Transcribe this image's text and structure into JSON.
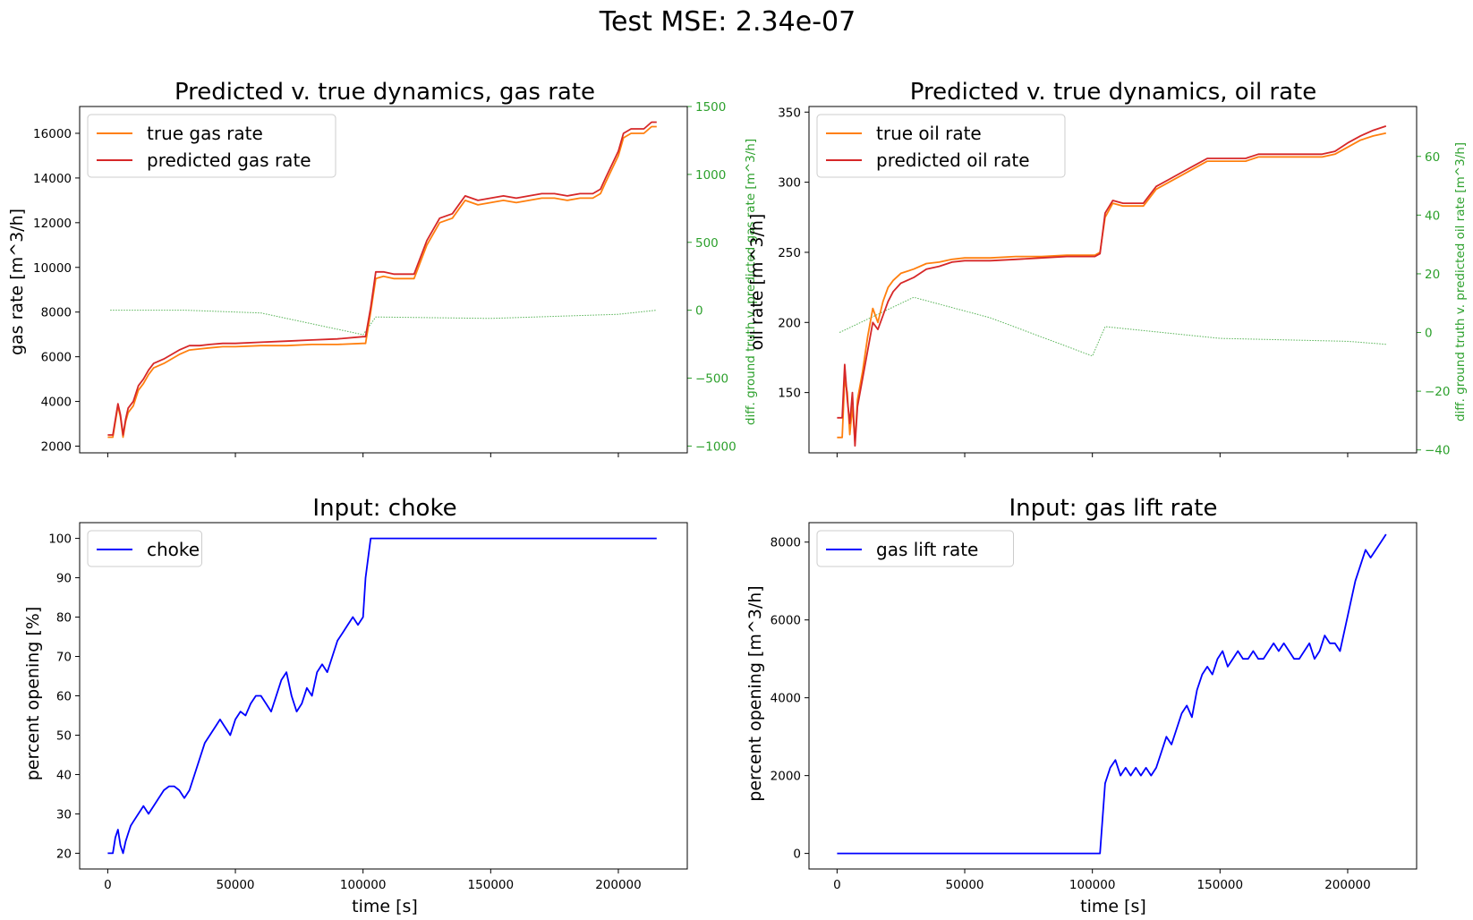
{
  "suptitle": "Test MSE: 2.34e-07",
  "chart_data": [
    {
      "type": "line",
      "title": "Predicted v. true dynamics, gas rate",
      "xlabel": "",
      "ylabel": "gas rate [m^3/h]",
      "ylabel_right": "diff. ground truth v. predicted gas rate [m^3/h]",
      "xlim": [
        -11000,
        227000
      ],
      "ylim": [
        1700,
        17200
      ],
      "ylim_right": [
        -1050,
        1500
      ],
      "xticks": [
        0,
        50000,
        100000,
        150000,
        200000
      ],
      "xtick_labels": [],
      "yticks": [
        2000,
        4000,
        6000,
        8000,
        10000,
        12000,
        14000,
        16000
      ],
      "ytick_labels": [
        "2000",
        "4000",
        "6000",
        "8000",
        "10000",
        "12000",
        "14000",
        "16000"
      ],
      "yticks_right": [
        -1000,
        -500,
        0,
        500,
        1000,
        1500
      ],
      "ytick_labels_right": [
        "−1000",
        "−500",
        "0",
        "500",
        "1000",
        "1500"
      ],
      "legend": "top-left",
      "series": [
        {
          "name": "true gas rate",
          "color": "#ff7f0e",
          "x": [
            0,
            2000,
            4000,
            5000,
            6000,
            7000,
            8000,
            10000,
            12000,
            14000,
            16000,
            18000,
            20000,
            22000,
            25000,
            28000,
            32000,
            36000,
            40000,
            45000,
            50000,
            60000,
            70000,
            80000,
            90000,
            100000,
            101000,
            103000,
            105000,
            108000,
            112000,
            115000,
            120000,
            125000,
            130000,
            135000,
            140000,
            145000,
            150000,
            155000,
            160000,
            165000,
            170000,
            175000,
            180000,
            185000,
            190000,
            193000,
            195000,
            200000,
            202000,
            205000,
            210000,
            213000,
            215000
          ],
          "y": [
            2400,
            2400,
            3800,
            3300,
            2400,
            3100,
            3500,
            3800,
            4500,
            4800,
            5200,
            5500,
            5600,
            5700,
            5900,
            6100,
            6300,
            6350,
            6400,
            6450,
            6450,
            6500,
            6500,
            6550,
            6550,
            6600,
            6600,
            8000,
            9500,
            9600,
            9500,
            9500,
            9500,
            11000,
            12000,
            12200,
            13000,
            12800,
            12900,
            13000,
            12900,
            13000,
            13100,
            13100,
            13000,
            13100,
            13100,
            13300,
            13800,
            15000,
            15800,
            16000,
            16000,
            16300,
            16300
          ]
        },
        {
          "name": "predicted gas rate",
          "color": "#d62728",
          "x": [
            0,
            2000,
            4000,
            5000,
            6000,
            7000,
            8000,
            10000,
            12000,
            14000,
            16000,
            18000,
            20000,
            22000,
            25000,
            28000,
            32000,
            36000,
            40000,
            45000,
            50000,
            60000,
            70000,
            80000,
            90000,
            100000,
            101000,
            103000,
            105000,
            108000,
            112000,
            115000,
            120000,
            125000,
            130000,
            135000,
            140000,
            145000,
            150000,
            155000,
            160000,
            165000,
            170000,
            175000,
            180000,
            185000,
            190000,
            193000,
            195000,
            200000,
            202000,
            205000,
            210000,
            213000,
            215000
          ],
          "y": [
            2500,
            2500,
            3900,
            3400,
            2500,
            3200,
            3700,
            4000,
            4700,
            5000,
            5400,
            5700,
            5800,
            5900,
            6100,
            6300,
            6500,
            6500,
            6550,
            6600,
            6600,
            6650,
            6700,
            6750,
            6800,
            6900,
            6900,
            8200,
            9800,
            9800,
            9700,
            9700,
            9700,
            11200,
            12200,
            12400,
            13200,
            13000,
            13100,
            13200,
            13100,
            13200,
            13300,
            13300,
            13200,
            13300,
            13300,
            13500,
            14000,
            15200,
            16000,
            16200,
            16200,
            16500,
            16500
          ]
        }
      ],
      "diff_series": {
        "name": "difference",
        "color": "#2ca02c",
        "x": [
          1000,
          30000,
          60000,
          100000,
          105000,
          150000,
          200000,
          215000
        ],
        "y": [
          0,
          0,
          -20,
          -180,
          -50,
          -60,
          -30,
          0
        ]
      }
    },
    {
      "type": "line",
      "title": "Predicted v. true dynamics, oil rate",
      "xlabel": "",
      "ylabel": "oil rate [m^3/h]",
      "ylabel_right": "diff. ground truth v. predicted oil rate [m^3/h]",
      "xlim": [
        -11000,
        227000
      ],
      "ylim": [
        107,
        354
      ],
      "ylim_right": [
        -41,
        77
      ],
      "xticks": [
        0,
        50000,
        100000,
        150000,
        200000
      ],
      "xtick_labels": [],
      "yticks": [
        150,
        200,
        250,
        300,
        350
      ],
      "ytick_labels": [
        "150",
        "200",
        "250",
        "300",
        "350"
      ],
      "yticks_right": [
        -40,
        -20,
        0,
        20,
        40,
        60
      ],
      "ytick_labels_right": [
        "−40",
        "−20",
        "0",
        "20",
        "40",
        "60"
      ],
      "legend": "top-left",
      "series": [
        {
          "name": "true oil rate",
          "color": "#ff7f0e",
          "x": [
            0,
            2000,
            3000,
            4000,
            5000,
            6000,
            7000,
            8000,
            10000,
            12000,
            14000,
            16000,
            18000,
            20000,
            22000,
            25000,
            30000,
            35000,
            40000,
            45000,
            50000,
            60000,
            70000,
            80000,
            90000,
            100000,
            101000,
            103000,
            105000,
            108000,
            112000,
            115000,
            120000,
            125000,
            130000,
            135000,
            140000,
            145000,
            150000,
            155000,
            160000,
            165000,
            170000,
            175000,
            180000,
            185000,
            190000,
            195000,
            200000,
            205000,
            210000,
            215000
          ],
          "y": [
            118,
            118,
            160,
            150,
            120,
            140,
            115,
            145,
            165,
            190,
            210,
            200,
            215,
            225,
            230,
            235,
            238,
            242,
            243,
            245,
            246,
            246,
            247,
            247,
            248,
            248,
            248,
            250,
            275,
            285,
            283,
            283,
            283,
            295,
            300,
            305,
            310,
            315,
            315,
            315,
            315,
            318,
            318,
            318,
            318,
            318,
            318,
            320,
            325,
            330,
            333,
            335
          ]
        },
        {
          "name": "predicted oil rate",
          "color": "#d62728",
          "x": [
            0,
            2000,
            3000,
            4000,
            5000,
            6000,
            7000,
            8000,
            10000,
            12000,
            14000,
            16000,
            18000,
            20000,
            22000,
            25000,
            30000,
            35000,
            40000,
            45000,
            50000,
            60000,
            70000,
            80000,
            90000,
            100000,
            101000,
            103000,
            105000,
            108000,
            112000,
            115000,
            120000,
            125000,
            130000,
            135000,
            140000,
            145000,
            150000,
            155000,
            160000,
            165000,
            170000,
            175000,
            180000,
            185000,
            190000,
            195000,
            200000,
            205000,
            210000,
            215000
          ],
          "y": [
            132,
            132,
            170,
            145,
            128,
            150,
            112,
            140,
            160,
            180,
            200,
            195,
            205,
            215,
            222,
            228,
            232,
            238,
            240,
            243,
            244,
            244,
            245,
            246,
            247,
            247,
            247,
            249,
            278,
            287,
            285,
            285,
            285,
            297,
            302,
            307,
            312,
            317,
            317,
            317,
            317,
            320,
            320,
            320,
            320,
            320,
            320,
            322,
            328,
            333,
            337,
            340
          ]
        }
      ],
      "diff_series": {
        "name": "difference",
        "color": "#2ca02c",
        "x": [
          1000,
          30000,
          60000,
          100000,
          105000,
          150000,
          200000,
          215000
        ],
        "y": [
          0,
          12,
          5,
          -8,
          2,
          -2,
          -3,
          -4
        ]
      }
    },
    {
      "type": "line",
      "title": "Input: choke",
      "xlabel": "time [s]",
      "ylabel": "percent opening [%]",
      "xlim": [
        -11000,
        227000
      ],
      "ylim": [
        16,
        104
      ],
      "xticks": [
        0,
        50000,
        100000,
        150000,
        200000
      ],
      "xtick_labels": [
        "0",
        "50000",
        "100000",
        "150000",
        "200000"
      ],
      "yticks": [
        20,
        30,
        40,
        50,
        60,
        70,
        80,
        90,
        100
      ],
      "ytick_labels": [
        "20",
        "30",
        "40",
        "50",
        "60",
        "70",
        "80",
        "90",
        "100"
      ],
      "legend": "top-left",
      "series": [
        {
          "name": "choke",
          "color": "#0000ff",
          "x": [
            0,
            2000,
            3000,
            4000,
            5000,
            6000,
            7000,
            8000,
            9000,
            10000,
            12000,
            14000,
            16000,
            18000,
            20000,
            22000,
            24000,
            26000,
            28000,
            30000,
            32000,
            34000,
            36000,
            38000,
            40000,
            42000,
            44000,
            46000,
            48000,
            50000,
            52000,
            54000,
            56000,
            58000,
            60000,
            62000,
            64000,
            66000,
            68000,
            70000,
            72000,
            74000,
            76000,
            78000,
            80000,
            82000,
            84000,
            86000,
            88000,
            90000,
            92000,
            94000,
            96000,
            98000,
            100000,
            101000,
            103000,
            105000,
            110000,
            150000,
            200000,
            215000
          ],
          "y": [
            20,
            20,
            24,
            26,
            22,
            20,
            23,
            25,
            27,
            28,
            30,
            32,
            30,
            32,
            34,
            36,
            37,
            37,
            36,
            34,
            36,
            40,
            44,
            48,
            50,
            52,
            54,
            52,
            50,
            54,
            56,
            55,
            58,
            60,
            60,
            58,
            56,
            60,
            64,
            66,
            60,
            56,
            58,
            62,
            60,
            66,
            68,
            66,
            70,
            74,
            76,
            78,
            80,
            78,
            80,
            90,
            100,
            100,
            100,
            100,
            100,
            100
          ]
        }
      ]
    },
    {
      "type": "line",
      "title": "Input: gas lift rate",
      "xlabel": "time [s]",
      "ylabel": "percent opening [m^3/h]",
      "xlim": [
        -11000,
        227000
      ],
      "ylim": [
        -400,
        8500
      ],
      "xticks": [
        0,
        50000,
        100000,
        150000,
        200000
      ],
      "xtick_labels": [
        "0",
        "50000",
        "100000",
        "150000",
        "200000"
      ],
      "yticks": [
        0,
        2000,
        4000,
        6000,
        8000
      ],
      "ytick_labels": [
        "0",
        "2000",
        "4000",
        "6000",
        "8000"
      ],
      "legend": "top-left",
      "series": [
        {
          "name": "gas lift rate",
          "color": "#0000ff",
          "x": [
            0,
            20000,
            50000,
            80000,
            100000,
            103000,
            105000,
            107000,
            109000,
            111000,
            113000,
            115000,
            117000,
            119000,
            121000,
            123000,
            125000,
            127000,
            129000,
            131000,
            133000,
            135000,
            137000,
            139000,
            141000,
            143000,
            145000,
            147000,
            149000,
            151000,
            153000,
            155000,
            157000,
            159000,
            161000,
            163000,
            165000,
            167000,
            169000,
            171000,
            173000,
            175000,
            177000,
            179000,
            181000,
            183000,
            185000,
            187000,
            189000,
            191000,
            193000,
            195000,
            197000,
            199000,
            201000,
            203000,
            205000,
            207000,
            209000,
            211000,
            213000,
            215000
          ],
          "y": [
            0,
            0,
            0,
            0,
            0,
            0,
            1800,
            2200,
            2400,
            2000,
            2200,
            2000,
            2200,
            2000,
            2200,
            2000,
            2200,
            2600,
            3000,
            2800,
            3200,
            3600,
            3800,
            3500,
            4200,
            4600,
            4800,
            4600,
            5000,
            5200,
            4800,
            5000,
            5200,
            5000,
            5000,
            5200,
            5000,
            5000,
            5200,
            5400,
            5200,
            5400,
            5200,
            5000,
            5000,
            5200,
            5400,
            5000,
            5200,
            5600,
            5400,
            5400,
            5200,
            5800,
            6400,
            7000,
            7400,
            7800,
            7600,
            7800,
            8000,
            8200
          ]
        }
      ]
    }
  ]
}
